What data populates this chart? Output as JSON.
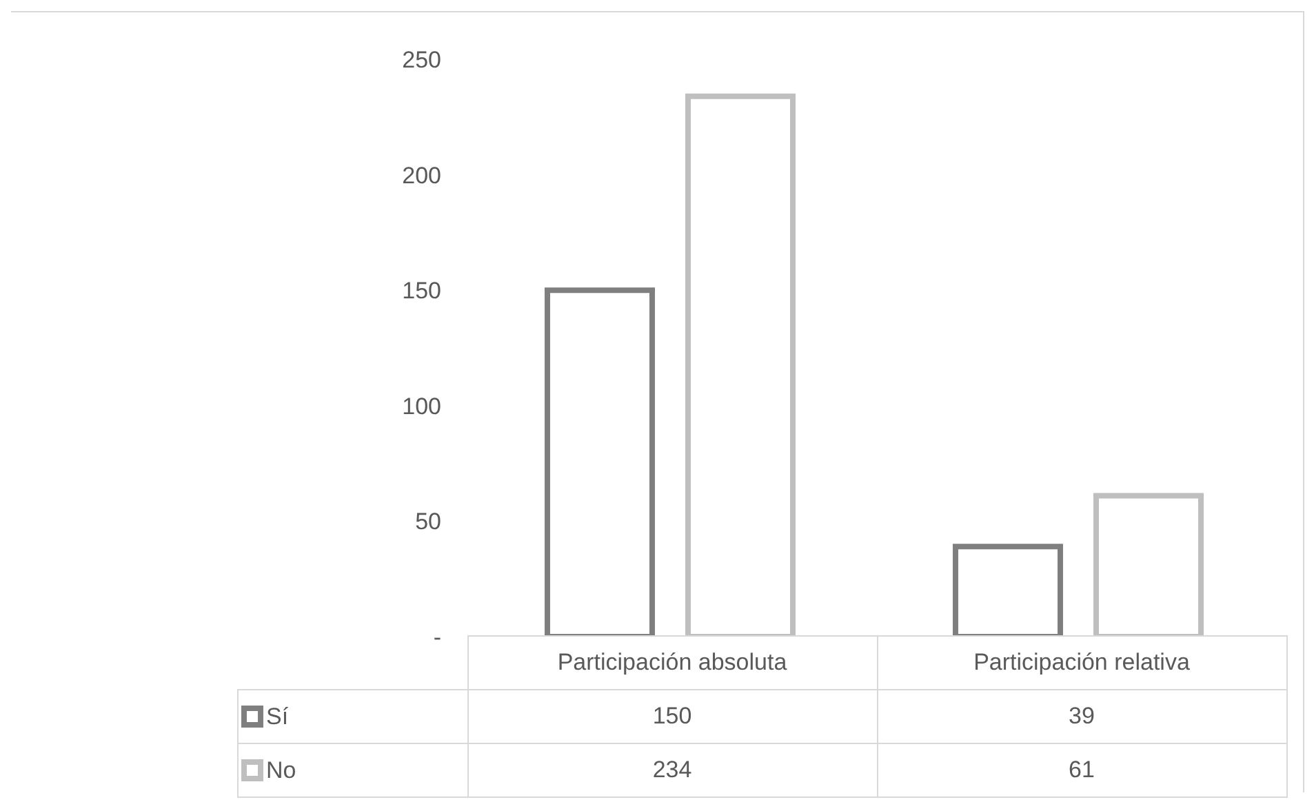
{
  "chart_data": {
    "type": "bar",
    "categories": [
      "Participación absoluta",
      "Participación relativa"
    ],
    "series": [
      {
        "name": "Sí",
        "color": "#7f7f7f",
        "values": [
          150,
          39
        ]
      },
      {
        "name": "No",
        "color": "#bfbfbf",
        "values": [
          234,
          61
        ]
      }
    ],
    "ylim": [
      0,
      250
    ],
    "yticks": [
      {
        "value": 0,
        "label": "-"
      },
      50,
      100,
      150,
      200,
      250
    ],
    "legend": "bottom",
    "data_labels": true
  }
}
